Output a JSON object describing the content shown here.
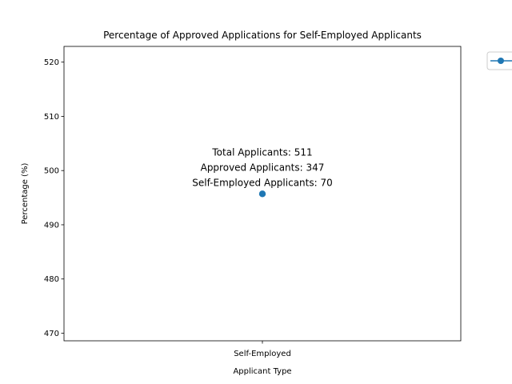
{
  "chart_data": {
    "type": "line",
    "title": "Percentage of Approved Applications for Self-Employed Applicants",
    "xlabel": "Applicant Type",
    "ylabel": "Percentage (%)",
    "categories": [
      "Self-Employed"
    ],
    "series": [
      {
        "values": [
          495.7
        ],
        "color": "#1f77b4",
        "marker": "circle"
      }
    ],
    "ylim": [
      468.6,
      522.9
    ],
    "yticks": [
      470,
      480,
      490,
      500,
      510,
      520
    ],
    "annotation": {
      "lines": [
        "Total Applicants: 511",
        "Approved Applicants: 347",
        "Self-Employed Applicants: 70"
      ]
    },
    "legend": {
      "placement": "outside-top-right",
      "entries": [
        ""
      ]
    },
    "grid": false
  }
}
